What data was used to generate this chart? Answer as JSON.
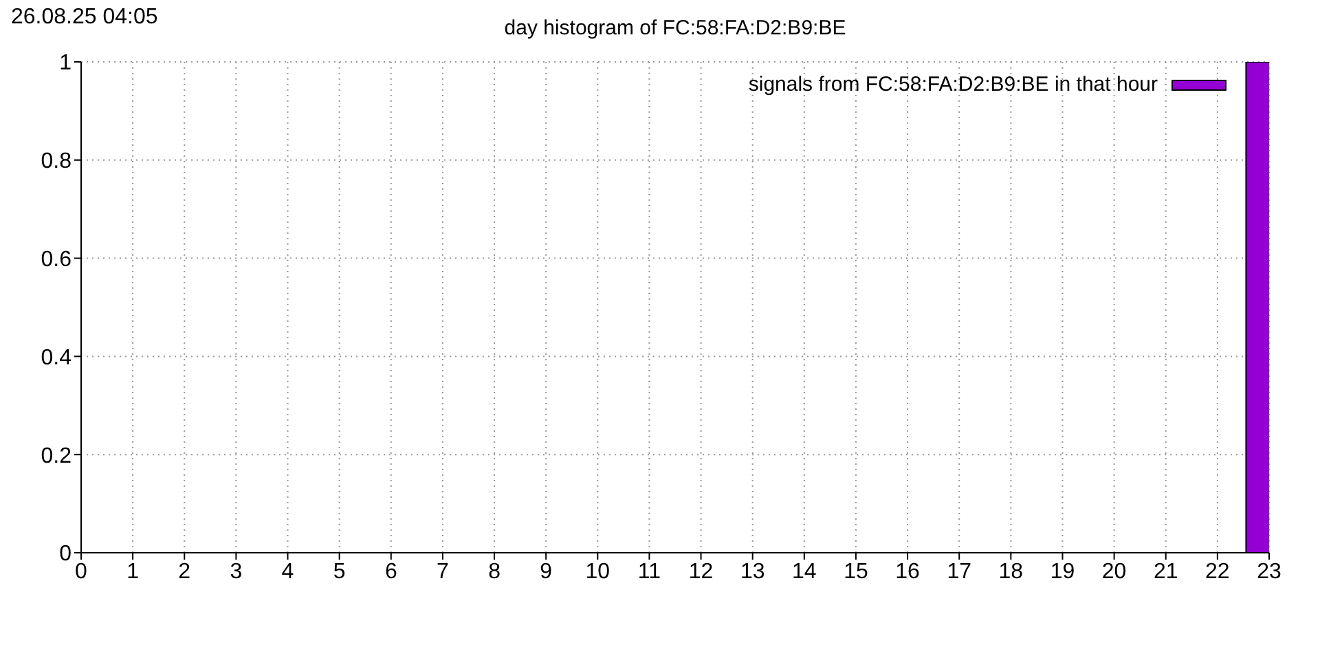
{
  "chart_data": {
    "type": "bar",
    "title": "day histogram of FC:58:FA:D2:B9:BE",
    "annotations": [
      "26.08.25 04:05"
    ],
    "x": [
      0,
      1,
      2,
      3,
      4,
      5,
      6,
      7,
      8,
      9,
      10,
      11,
      12,
      13,
      14,
      15,
      16,
      17,
      18,
      19,
      20,
      21,
      22,
      23
    ],
    "series": [
      {
        "name": "signals from FC:58:FA:D2:B9:BE in that hour",
        "color": "#9400d3",
        "values": [
          0,
          0,
          0,
          0,
          0,
          0,
          0,
          0,
          0,
          0,
          0,
          0,
          0,
          0,
          0,
          0,
          0,
          0,
          0,
          0,
          0,
          0,
          0,
          1
        ]
      }
    ],
    "xlim": [
      0,
      23
    ],
    "xticks": [
      0,
      1,
      2,
      3,
      4,
      5,
      6,
      7,
      8,
      9,
      10,
      11,
      12,
      13,
      14,
      15,
      16,
      17,
      18,
      19,
      20,
      21,
      22,
      23
    ],
    "ylim": [
      0,
      1
    ],
    "yticks": [
      0,
      0.2,
      0.4,
      0.6,
      0.8,
      1
    ],
    "grid": true,
    "legend": "top right"
  }
}
